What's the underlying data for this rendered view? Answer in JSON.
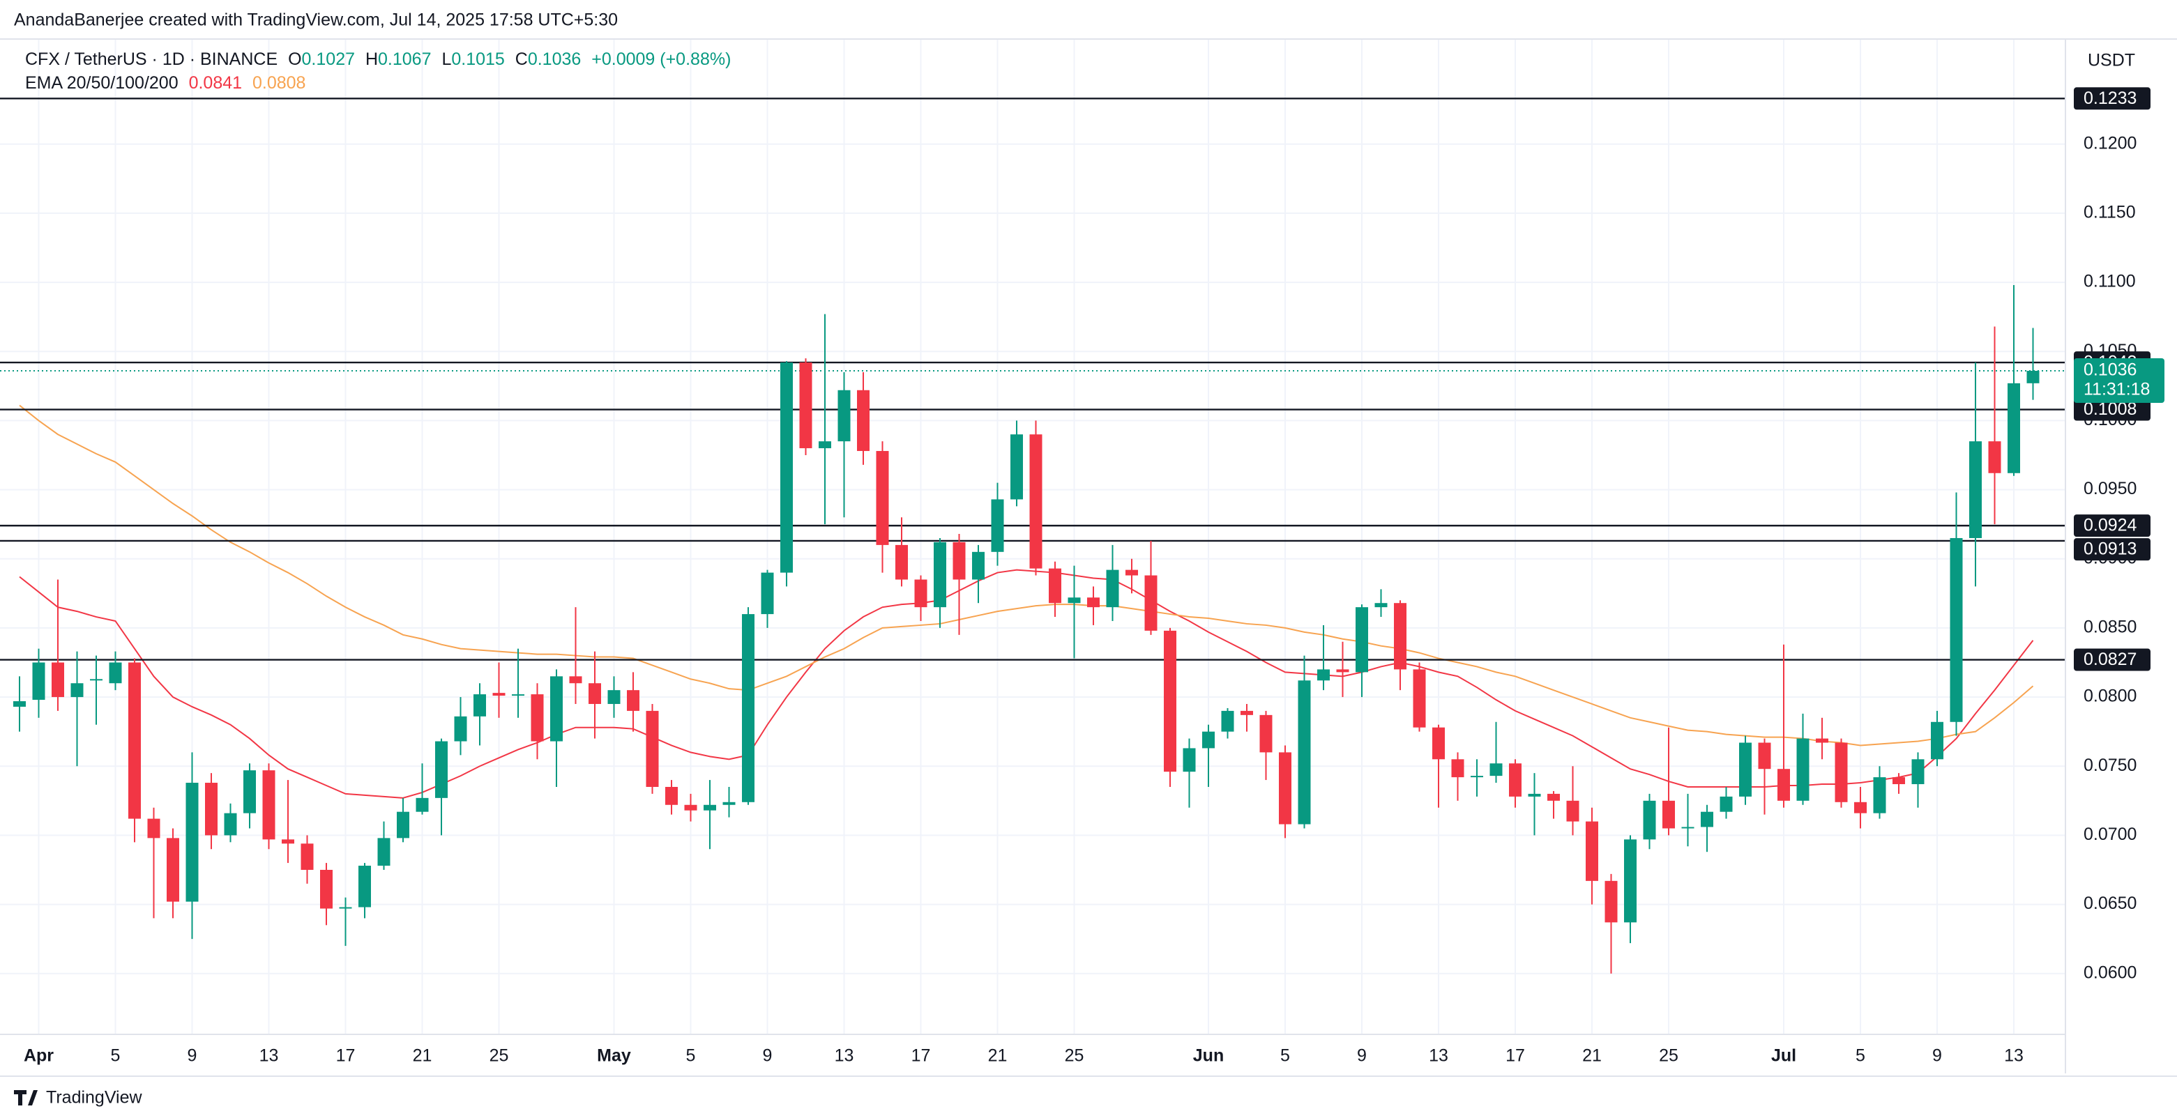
{
  "header": {
    "credit": "AnandaBanerjee created with TradingView.com, Jul 14, 2025 17:58 UTC+5:30",
    "logo": "TradingView"
  },
  "chart_data": {
    "type": "candlestick",
    "symbol": "CFX / TetherUS · 1D · BINANCE",
    "ohlc_labels": [
      "O",
      "H",
      "L",
      "C"
    ],
    "change": "+0.0009 (+0.88%)",
    "indicator": "EMA 20/50/100/200",
    "currency": "USDT",
    "countdown": "11:31:18",
    "up_color": "#089981",
    "down_color": "#f23645",
    "categories": [
      null,
      "Apr",
      null,
      null,
      null,
      "5",
      null,
      null,
      null,
      "9",
      null,
      null,
      null,
      "13",
      null,
      null,
      null,
      "17",
      null,
      null,
      null,
      "21",
      null,
      null,
      null,
      "25",
      null,
      null,
      null,
      null,
      null,
      "May",
      null,
      null,
      null,
      "5",
      null,
      null,
      null,
      "9",
      null,
      null,
      null,
      "13",
      null,
      null,
      null,
      "17",
      null,
      null,
      null,
      "21",
      null,
      null,
      null,
      "25",
      null,
      null,
      null,
      null,
      null,
      null,
      "Jun",
      null,
      null,
      null,
      "5",
      null,
      null,
      null,
      "9",
      null,
      null,
      null,
      "13",
      null,
      null,
      null,
      "17",
      null,
      null,
      null,
      "21",
      null,
      null,
      null,
      "25",
      null,
      null,
      null,
      null,
      null,
      "Jul",
      null,
      null,
      null,
      "5",
      null,
      null,
      null,
      "9",
      null,
      null,
      null,
      "13",
      null
    ],
    "open": [
      0.0793,
      0.0798,
      0.0825,
      0.08,
      0.0812,
      0.081,
      0.0825,
      0.0712,
      0.0698,
      0.0652,
      0.0738,
      0.07,
      0.0716,
      0.0747,
      0.0697,
      0.0694,
      0.0675,
      0.0647,
      0.0648,
      0.0678,
      0.0698,
      0.0717,
      0.0727,
      0.0768,
      0.0786,
      0.0803,
      0.0801,
      0.0802,
      0.0768,
      0.0815,
      0.081,
      0.0795,
      0.0805,
      0.079,
      0.0735,
      0.0722,
      0.0718,
      0.0722,
      0.0724,
      0.086,
      0.089,
      0.1042,
      0.098,
      0.0985,
      0.1022,
      0.0978,
      0.091,
      0.0885,
      0.0865,
      0.0912,
      0.0885,
      0.0905,
      0.0943,
      0.099,
      0.0893,
      0.0868,
      0.0872,
      0.0865,
      0.0892,
      0.0888,
      0.0848,
      0.0746,
      0.0763,
      0.0775,
      0.079,
      0.0787,
      0.076,
      0.0708,
      0.0812,
      0.082,
      0.0818,
      0.0865,
      0.0868,
      0.082,
      0.0778,
      0.0755,
      0.0742,
      0.0743,
      0.0752,
      0.0728,
      0.073,
      0.0725,
      0.071,
      0.0667,
      0.0637,
      0.0697,
      0.0725,
      0.0705,
      0.0706,
      0.0717,
      0.0728,
      0.0767,
      0.0748,
      0.0725,
      0.077,
      0.0767,
      0.0724,
      0.0716,
      0.0742,
      0.0737,
      0.0755,
      0.0782,
      0.0915,
      0.0985,
      0.0962,
      0.1027
    ],
    "high": [
      0.0815,
      0.0835,
      0.0885,
      0.0833,
      0.083,
      0.0833,
      0.0828,
      0.072,
      0.0705,
      0.076,
      0.0745,
      0.0723,
      0.0752,
      0.0752,
      0.074,
      0.07,
      0.068,
      0.0655,
      0.068,
      0.071,
      0.0727,
      0.0752,
      0.077,
      0.08,
      0.081,
      0.0825,
      0.0835,
      0.081,
      0.082,
      0.0865,
      0.0833,
      0.0815,
      0.0818,
      0.0795,
      0.074,
      0.073,
      0.074,
      0.0735,
      0.0865,
      0.0892,
      0.1043,
      0.1045,
      0.1077,
      0.1035,
      0.1035,
      0.0985,
      0.093,
      0.0888,
      0.0915,
      0.0918,
      0.091,
      0.0955,
      0.1,
      0.1,
      0.0898,
      0.0895,
      0.088,
      0.091,
      0.09,
      0.0913,
      0.085,
      0.077,
      0.078,
      0.0792,
      0.0795,
      0.079,
      0.0765,
      0.083,
      0.0852,
      0.084,
      0.0867,
      0.0878,
      0.087,
      0.0825,
      0.078,
      0.076,
      0.0755,
      0.0782,
      0.0755,
      0.0745,
      0.0732,
      0.075,
      0.072,
      0.0672,
      0.07,
      0.073,
      0.0778,
      0.073,
      0.0722,
      0.0735,
      0.0772,
      0.077,
      0.0838,
      0.0788,
      0.0785,
      0.077,
      0.0735,
      0.075,
      0.0745,
      0.076,
      0.079,
      0.0948,
      0.1042,
      0.1068,
      0.1098,
      0.1067
    ],
    "low": [
      0.0775,
      0.0785,
      0.079,
      0.075,
      0.078,
      0.0805,
      0.0695,
      0.064,
      0.064,
      0.0625,
      0.069,
      0.0695,
      0.0705,
      0.069,
      0.068,
      0.0665,
      0.0635,
      0.062,
      0.064,
      0.0675,
      0.0695,
      0.0715,
      0.07,
      0.0758,
      0.0765,
      0.0785,
      0.0785,
      0.0755,
      0.0735,
      0.0795,
      0.077,
      0.0785,
      0.0775,
      0.073,
      0.0715,
      0.071,
      0.069,
      0.0713,
      0.0722,
      0.085,
      0.088,
      0.0975,
      0.0925,
      0.093,
      0.0968,
      0.089,
      0.088,
      0.0855,
      0.085,
      0.0845,
      0.0868,
      0.0895,
      0.0938,
      0.0888,
      0.0858,
      0.0828,
      0.0852,
      0.0855,
      0.0875,
      0.0845,
      0.0735,
      0.072,
      0.0735,
      0.077,
      0.0775,
      0.074,
      0.0698,
      0.0705,
      0.0805,
      0.08,
      0.08,
      0.0858,
      0.0805,
      0.0775,
      0.072,
      0.0725,
      0.0728,
      0.0738,
      0.072,
      0.07,
      0.0712,
      0.07,
      0.065,
      0.06,
      0.0622,
      0.069,
      0.07,
      0.0692,
      0.0688,
      0.0712,
      0.0722,
      0.0715,
      0.072,
      0.0722,
      0.0755,
      0.072,
      0.0705,
      0.0712,
      0.073,
      0.072,
      0.075,
      0.0772,
      0.088,
      0.0925,
      0.096,
      0.1015
    ],
    "close": [
      0.0797,
      0.0825,
      0.08,
      0.081,
      0.0813,
      0.0825,
      0.0712,
      0.0698,
      0.0652,
      0.0738,
      0.07,
      0.0716,
      0.0747,
      0.0697,
      0.0694,
      0.0675,
      0.0647,
      0.0648,
      0.0678,
      0.0698,
      0.0717,
      0.0727,
      0.0768,
      0.0786,
      0.0802,
      0.0801,
      0.0802,
      0.0768,
      0.0815,
      0.081,
      0.0795,
      0.0805,
      0.079,
      0.0735,
      0.0722,
      0.0718,
      0.0722,
      0.0724,
      0.086,
      0.089,
      0.1042,
      0.098,
      0.0985,
      0.1022,
      0.0978,
      0.091,
      0.0885,
      0.0865,
      0.0912,
      0.0885,
      0.0905,
      0.0943,
      0.099,
      0.0893,
      0.0868,
      0.0872,
      0.0865,
      0.0892,
      0.0888,
      0.0848,
      0.0746,
      0.0763,
      0.0775,
      0.079,
      0.0787,
      0.076,
      0.0708,
      0.0812,
      0.082,
      0.0818,
      0.0865,
      0.0868,
      0.082,
      0.0778,
      0.0755,
      0.0742,
      0.0743,
      0.0752,
      0.0728,
      0.073,
      0.0725,
      0.071,
      0.0667,
      0.0637,
      0.0697,
      0.0725,
      0.0705,
      0.0706,
      0.0717,
      0.0728,
      0.0767,
      0.0748,
      0.0725,
      0.077,
      0.0767,
      0.0724,
      0.0716,
      0.0742,
      0.0737,
      0.0755,
      0.0782,
      0.0915,
      0.0985,
      0.0962,
      0.1027,
      0.1036
    ],
    "series": [
      {
        "color": "#f23645",
        "values": [
          0.0887,
          0.0876,
          0.0865,
          0.0862,
          0.0858,
          0.0855,
          0.0835,
          0.0815,
          0.08,
          0.0793,
          0.0787,
          0.078,
          0.077,
          0.0758,
          0.0748,
          0.0742,
          0.0736,
          0.073,
          0.0729,
          0.0728,
          0.0727,
          0.0731,
          0.0737,
          0.0743,
          0.075,
          0.0756,
          0.0762,
          0.0767,
          0.0773,
          0.0778,
          0.0778,
          0.0778,
          0.0777,
          0.0771,
          0.0765,
          0.076,
          0.0757,
          0.0755,
          0.0758,
          0.078,
          0.08,
          0.0818,
          0.0835,
          0.0848,
          0.0858,
          0.0865,
          0.0867,
          0.0868,
          0.087,
          0.0877,
          0.0884,
          0.089,
          0.0892,
          0.0891,
          0.089,
          0.0888,
          0.0886,
          0.0885,
          0.0878,
          0.087,
          0.0862,
          0.0855,
          0.0847,
          0.084,
          0.0833,
          0.0825,
          0.0818,
          0.0817,
          0.0816,
          0.0815,
          0.0818,
          0.0822,
          0.0825,
          0.0822,
          0.0818,
          0.0815,
          0.0807,
          0.0798,
          0.079,
          0.0784,
          0.0778,
          0.0772,
          0.0764,
          0.0756,
          0.0748,
          0.0744,
          0.0739,
          0.0735,
          0.0735,
          0.0735,
          0.0735,
          0.0735,
          0.0736,
          0.0736,
          0.0737,
          0.0737,
          0.0738,
          0.074,
          0.0742,
          0.0745,
          0.0757,
          0.077,
          0.0788,
          0.0805,
          0.0823,
          0.0841
        ]
      },
      {
        "color": "#f7a350",
        "values": [
          0.1011,
          0.1,
          0.099,
          0.0983,
          0.0976,
          0.097,
          0.096,
          0.095,
          0.094,
          0.0931,
          0.0921,
          0.0912,
          0.0905,
          0.0897,
          0.089,
          0.0882,
          0.0873,
          0.0865,
          0.0858,
          0.0852,
          0.0845,
          0.0842,
          0.0838,
          0.0835,
          0.0834,
          0.0833,
          0.0832,
          0.0831,
          0.0831,
          0.083,
          0.0829,
          0.0829,
          0.0828,
          0.0823,
          0.0818,
          0.0813,
          0.081,
          0.0806,
          0.0805,
          0.081,
          0.0815,
          0.0822,
          0.0829,
          0.0835,
          0.0843,
          0.085,
          0.0851,
          0.0852,
          0.0853,
          0.0856,
          0.0859,
          0.0862,
          0.0864,
          0.0866,
          0.0867,
          0.0867,
          0.0866,
          0.0866,
          0.0864,
          0.0862,
          0.086,
          0.0858,
          0.0857,
          0.0855,
          0.0853,
          0.0852,
          0.085,
          0.0847,
          0.0845,
          0.0842,
          0.084,
          0.0837,
          0.0835,
          0.0832,
          0.0828,
          0.0825,
          0.0822,
          0.0818,
          0.0815,
          0.081,
          0.0805,
          0.08,
          0.0795,
          0.079,
          0.0785,
          0.0782,
          0.0779,
          0.0776,
          0.0775,
          0.0773,
          0.0772,
          0.0771,
          0.0771,
          0.077,
          0.0768,
          0.0767,
          0.0765,
          0.0766,
          0.0767,
          0.0768,
          0.077,
          0.0773,
          0.0775,
          0.0785,
          0.0796,
          0.0808
        ]
      }
    ],
    "levels": [
      0.1233,
      0.1042,
      0.1008,
      0.0924,
      0.0913,
      0.0827
    ],
    "ylim": [
      0.0556,
      0.1276
    ],
    "yticks": [
      {
        "value": 0.06,
        "label": "0.0600"
      },
      {
        "value": 0.065,
        "label": "0.0650"
      },
      {
        "value": 0.07,
        "label": "0.0700"
      },
      {
        "value": 0.075,
        "label": "0.0750"
      },
      {
        "value": 0.08,
        "label": "0.0800"
      },
      {
        "value": 0.085,
        "label": "0.0850"
      },
      {
        "value": 0.09,
        "label": "0.0900"
      },
      {
        "value": 0.095,
        "label": "0.0950"
      },
      {
        "value": 0.1,
        "label": "0.1000"
      },
      {
        "value": 0.105,
        "label": "0.1050"
      },
      {
        "value": 0.11,
        "label": "0.1100"
      },
      {
        "value": 0.115,
        "label": "0.1150"
      },
      {
        "value": 0.12,
        "label": "0.1200"
      }
    ],
    "grid": true
  }
}
